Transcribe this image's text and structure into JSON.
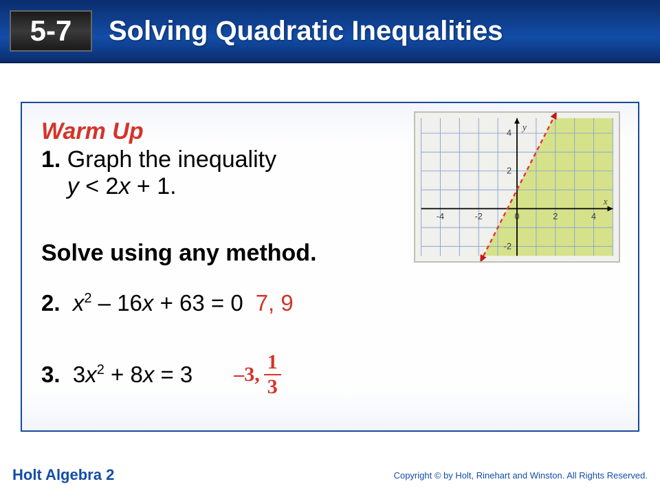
{
  "header": {
    "section_number": "5-7",
    "title": "Solving Quadratic Inequalities",
    "bg_gradient": [
      "#0a2d6e",
      "#134da8",
      "#0a2d6e"
    ],
    "title_color": "#ffffff",
    "title_fontsize": 40
  },
  "warmup": {
    "heading": "Warm Up",
    "heading_color": "#d4342a",
    "q1_num": "1.",
    "q1_text_a": " Graph the inequality",
    "q1_text_b": "y",
    "q1_text_c": " < 2",
    "q1_text_d": "x",
    "q1_text_e": " + 1.",
    "solve_heading": "Solve using any method.",
    "q2_num": "2.",
    "q2_eq_a": "x",
    "q2_eq_b": " – 16",
    "q2_eq_c": "x",
    "q2_eq_d": " + 63 = 0",
    "q2_answer": "7, 9",
    "q3_num": "3.",
    "q3_eq_a": "3",
    "q3_eq_b": "x",
    "q3_eq_c": " + 8",
    "q3_eq_d": "x",
    "q3_eq_e": " = 3",
    "q3_ans_prefix": "–3, ",
    "q3_ans_numer": "1",
    "q3_ans_denom": "3",
    "answer_color": "#d4342a",
    "text_fontsize": 34
  },
  "graph": {
    "type": "inequality-region",
    "xlim": [
      -5,
      5
    ],
    "ylim": [
      -2.5,
      4.8
    ],
    "xticks": [
      -4,
      -2,
      0,
      2,
      4
    ],
    "yticks": [
      -2,
      2,
      4
    ],
    "x_label": "x",
    "y_label": "y",
    "background_color": "#f0f0ec",
    "grid_color": "#8da4d1",
    "axis_color": "#000000",
    "line": {
      "slope": 2,
      "intercept": 1,
      "color": "#ed3030",
      "dash": "6,5",
      "width": 2.5
    },
    "shade_region": "right",
    "shade_color": "#d6e28a",
    "arrow_color": "#c01818",
    "tick_label_color": "#404040",
    "tick_fontsize": 13
  },
  "footer": {
    "book": "Holt Algebra 2",
    "copyright": "Copyright © by Holt, Rinehart and Winston.   All Rights Reserved.",
    "color": "#134da8"
  }
}
